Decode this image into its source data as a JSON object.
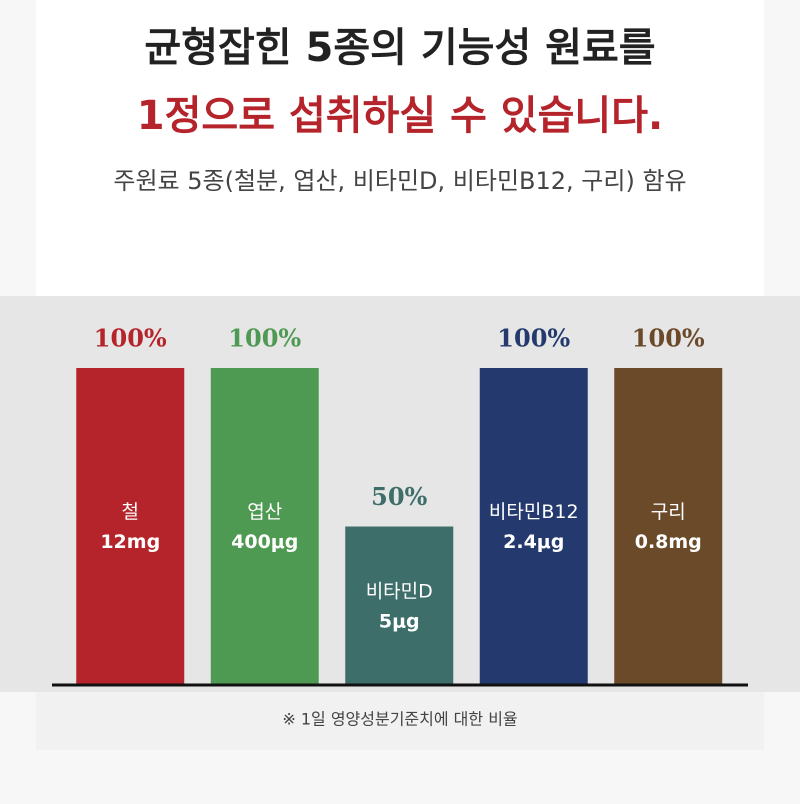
{
  "chart_data": {
    "type": "bar",
    "title": "균형잡힌 5종의 기능성 원료를",
    "subtitle_highlight": "1정으로 섭취하실 수 있습니다.",
    "subtitle": "주원료 5종(철분, 엽산, 비타민D, 비타민B12, 구리) 함유",
    "categories": [
      "철",
      "엽산",
      "비타민D",
      "비타민B12",
      "구리"
    ],
    "amounts": [
      "12mg",
      "400μg",
      "5μg",
      "2.4μg",
      "0.8mg"
    ],
    "values": [
      100,
      100,
      50,
      100,
      100
    ],
    "value_labels": [
      "100%",
      "100%",
      "50%",
      "100%",
      "100%"
    ],
    "colors": [
      "#b5242a",
      "#4f9a53",
      "#3d6e6a",
      "#243a6e",
      "#6b4a2a"
    ],
    "ylim": [
      0,
      100
    ],
    "footnote": "※ 1일 영양성분기준치에 대한 비율"
  }
}
